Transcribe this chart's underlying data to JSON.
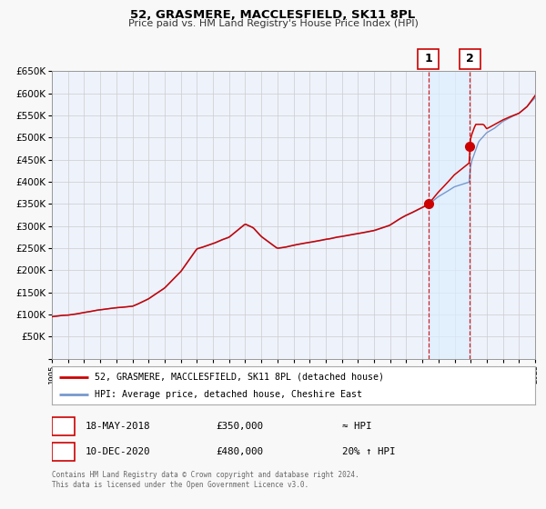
{
  "title": "52, GRASMERE, MACCLESFIELD, SK11 8PL",
  "subtitle": "Price paid vs. HM Land Registry's House Price Index (HPI)",
  "legend_line1": "52, GRASMERE, MACCLESFIELD, SK11 8PL (detached house)",
  "legend_line2": "HPI: Average price, detached house, Cheshire East",
  "note1_label": "1",
  "note1_date": "18-MAY-2018",
  "note1_price": "£350,000",
  "note1_hpi": "≈ HPI",
  "note2_label": "2",
  "note2_date": "10-DEC-2020",
  "note2_price": "£480,000",
  "note2_hpi": "20% ↑ HPI",
  "footer_line1": "Contains HM Land Registry data © Crown copyright and database right 2024.",
  "footer_line2": "This data is licensed under the Open Government Licence v3.0.",
  "vline1_x": 2018.37,
  "vline2_x": 2020.94,
  "marker1_x": 2018.37,
  "marker1_y": 350000,
  "marker2_x": 2020.94,
  "marker2_y": 480000,
  "sale_color": "#cc0000",
  "hpi_color": "#7799cc",
  "span_color": "#ddeeff",
  "grid_color": "#cccccc",
  "plot_bg": "#eef2fb",
  "fig_bg": "#f8f8f8",
  "xlim": [
    1995,
    2025
  ],
  "ylim": [
    0,
    650000
  ],
  "yticks": [
    0,
    50000,
    100000,
    150000,
    200000,
    250000,
    300000,
    350000,
    400000,
    450000,
    500000,
    550000,
    600000,
    650000
  ]
}
